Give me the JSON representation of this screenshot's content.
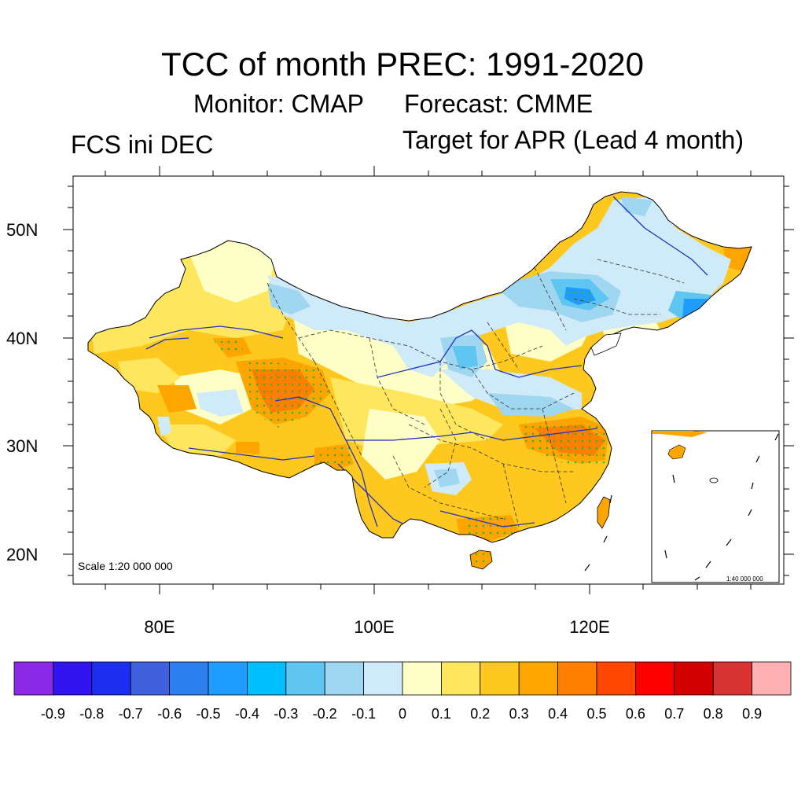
{
  "title": "TCC of month PREC: 1991-2020",
  "monitor": "Monitor: CMAP",
  "forecast": "Forecast: CMME",
  "fcs": "FCS ini DEC",
  "target": "Target for APR (Lead 4 month)",
  "scale_main": "Scale 1:20 000 000",
  "scale_inset": "1:40 000 000",
  "lat_labels": [
    "50N",
    "40N",
    "30N",
    "20N"
  ],
  "lon_labels": [
    "80E",
    "100E",
    "120E"
  ],
  "colorbar": {
    "labels": [
      "-0.9",
      "-0.8",
      "-0.7",
      "-0.6",
      "-0.5",
      "-0.4",
      "-0.3",
      "-0.2",
      "-0.1",
      "0",
      "0.1",
      "0.2",
      "0.3",
      "0.4",
      "0.5",
      "0.6",
      "0.7",
      "0.8",
      "0.9"
    ],
    "colors": [
      "#8c28e8",
      "#3214f0",
      "#1e2ef0",
      "#4060e0",
      "#2d7ff0",
      "#1e9cff",
      "#00bfff",
      "#5fc6f2",
      "#9fd6f0",
      "#cfeaf8",
      "#ffffc8",
      "#ffe65f",
      "#ffc81e",
      "#ffa500",
      "#ff8000",
      "#ff4800",
      "#ff0000",
      "#d20000",
      "#d83232",
      "#ffb0b0"
    ]
  },
  "fills": {
    "ocean": "#ffffff",
    "china_base": "#ffc81e",
    "light_yellow": "#ffffc8",
    "yellow": "#ffe65f",
    "orange": "#ffa500",
    "dark_orange": "#ff8000",
    "very_light_blue": "#cfeaf8",
    "light_blue": "#9fd6f0",
    "blue": "#5fc6f2",
    "mid_blue": "#1e9cff",
    "stipple": "#2db33a",
    "river": "#2030c0",
    "border": "#000000"
  }
}
